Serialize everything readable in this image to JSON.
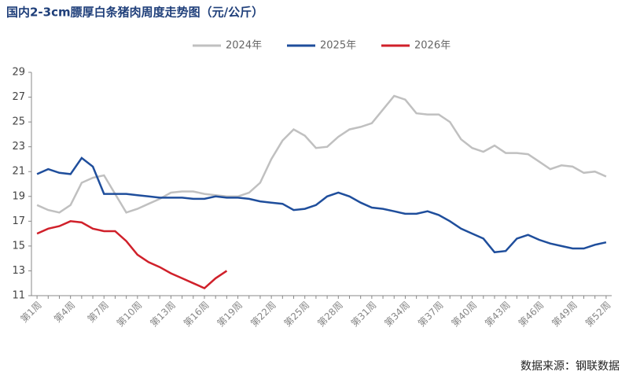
{
  "chart_data": {
    "type": "line",
    "title": "国内2-3cm膘厚白条猪肉周度走势图（元/公斤）",
    "source": "数据来源：钢联数据",
    "categories": [
      "第1周",
      null,
      null,
      "第4周",
      null,
      null,
      "第7周",
      null,
      null,
      "第10周",
      null,
      null,
      "第13周",
      null,
      null,
      "第16周",
      null,
      null,
      "第19周",
      null,
      null,
      "第22周",
      null,
      null,
      "第25周",
      null,
      null,
      "第28周",
      null,
      null,
      "第31周",
      null,
      null,
      "第34周",
      null,
      null,
      "第37周",
      null,
      null,
      "第40周",
      null,
      null,
      "第43周",
      null,
      null,
      "第46周",
      null,
      null,
      "第49周",
      null,
      null,
      "第52周"
    ],
    "series": [
      {
        "name": "2024年",
        "color": "#c0c0c0",
        "values": [
          18.3,
          17.9,
          17.7,
          18.3,
          20.1,
          20.5,
          20.7,
          19.2,
          17.7,
          18.0,
          18.4,
          18.8,
          19.3,
          19.4,
          19.4,
          19.2,
          19.1,
          19.0,
          19.0,
          19.3,
          20.1,
          22.0,
          23.5,
          24.4,
          23.9,
          22.9,
          23.0,
          23.8,
          24.4,
          24.6,
          24.9,
          26.0,
          27.1,
          26.8,
          25.7,
          25.6,
          25.6,
          25.0,
          23.6,
          22.9,
          22.6,
          23.1,
          22.5,
          22.5,
          22.4,
          21.8,
          21.2,
          21.5,
          21.4,
          20.9,
          21.0,
          20.6
        ]
      },
      {
        "name": "2025年",
        "color": "#1f4e9c",
        "values": [
          20.8,
          21.2,
          20.9,
          20.8,
          22.1,
          21.4,
          19.2,
          19.2,
          19.2,
          19.1,
          19.0,
          18.9,
          18.9,
          18.9,
          18.8,
          18.8,
          19.0,
          18.9,
          18.9,
          18.8,
          18.6,
          18.5,
          18.4,
          17.9,
          18.0,
          18.3,
          19.0,
          19.3,
          19.0,
          18.5,
          18.1,
          18.0,
          17.8,
          17.6,
          17.6,
          17.8,
          17.5,
          17.0,
          16.4,
          16.0,
          15.6,
          14.5,
          14.6,
          15.6,
          15.9,
          15.5,
          15.2,
          15.0,
          14.8,
          14.8,
          15.1,
          15.3
        ]
      },
      {
        "name": "2026年",
        "color": "#d0202a",
        "values": [
          16.0,
          16.4,
          16.6,
          17.0,
          16.9,
          16.4,
          16.2,
          16.2,
          15.4,
          14.3,
          13.7,
          13.3,
          12.8,
          12.4,
          12.0,
          11.6,
          12.4,
          13.0,
          null,
          null,
          null,
          null,
          null,
          null,
          null,
          null,
          null,
          null,
          null,
          null,
          null,
          null,
          null,
          null,
          null,
          null,
          null,
          null,
          null,
          null,
          null,
          null,
          null,
          null,
          null,
          null,
          null,
          null,
          null,
          null,
          null,
          null
        ]
      }
    ],
    "ylim": [
      11,
      29
    ],
    "yticks": [
      11,
      13,
      15,
      17,
      19,
      21,
      23,
      25,
      27,
      29
    ]
  }
}
